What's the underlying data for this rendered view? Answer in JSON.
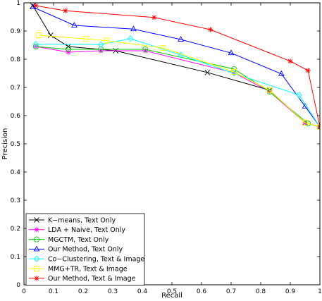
{
  "chart_data": {
    "type": "line",
    "xlabel": "Recall",
    "ylabel": "Precision",
    "xlim": [
      0,
      1
    ],
    "ylim": [
      0,
      1
    ],
    "xticks": [
      "0",
      "0.1",
      "0.2",
      "0.3",
      "0.4",
      "0.5",
      "0.6",
      "0.7",
      "0.8",
      "0.9",
      "1"
    ],
    "yticks": [
      "0",
      "0.1",
      "0.2",
      "0.3",
      "0.4",
      "0.5",
      "0.6",
      "0.7",
      "0.8",
      "0.9",
      "1"
    ],
    "grid": false,
    "legend_position": "bottom-left",
    "series": [
      {
        "name": "K−means, Text Only",
        "color": "#000000",
        "marker": "x",
        "points": [
          [
            0.03,
            0.99
          ],
          [
            0.09,
            0.885
          ],
          [
            0.15,
            0.845
          ],
          [
            0.31,
            0.83
          ],
          [
            0.62,
            0.753
          ],
          [
            0.83,
            0.69
          ],
          [
            0.95,
            0.575
          ],
          [
            1.0,
            0.56
          ]
        ]
      },
      {
        "name": "LDA + Naive, Text Only",
        "color": "#ff00ff",
        "marker": "star",
        "points": [
          [
            0.04,
            0.845
          ],
          [
            0.15,
            0.825
          ],
          [
            0.26,
            0.83
          ],
          [
            0.41,
            0.83
          ],
          [
            0.71,
            0.752
          ],
          [
            0.83,
            0.685
          ],
          [
            0.95,
            0.575
          ],
          [
            1.0,
            0.56
          ]
        ]
      },
      {
        "name": "MGCTM, Text Only",
        "color": "#00cc00",
        "marker": "circle",
        "points": [
          [
            0.04,
            0.845
          ],
          [
            0.15,
            0.835
          ],
          [
            0.26,
            0.835
          ],
          [
            0.41,
            0.835
          ],
          [
            0.71,
            0.765
          ],
          [
            0.83,
            0.685
          ],
          [
            0.96,
            0.572
          ],
          [
            1.0,
            0.56
          ]
        ]
      },
      {
        "name": "Our Method, Text Only",
        "color": "#0000ff",
        "marker": "triangle",
        "points": [
          [
            0.03,
            0.985
          ],
          [
            0.17,
            0.92
          ],
          [
            0.37,
            0.907
          ],
          [
            0.53,
            0.87
          ],
          [
            0.7,
            0.822
          ],
          [
            0.87,
            0.748
          ],
          [
            0.95,
            0.633
          ],
          [
            1.0,
            0.56
          ]
        ]
      },
      {
        "name": "Co−Clustering, Text & Image",
        "color": "#00ffff",
        "marker": "diamond",
        "points": [
          [
            0.04,
            0.853
          ],
          [
            0.26,
            0.852
          ],
          [
            0.36,
            0.873
          ],
          [
            0.53,
            0.815
          ],
          [
            0.71,
            0.75
          ],
          [
            0.93,
            0.673
          ],
          [
            1.0,
            0.56
          ]
        ]
      },
      {
        "name": "MMG+TR, Text & Image",
        "color": "#ffff00",
        "marker": "square",
        "points": [
          [
            0.05,
            0.885
          ],
          [
            0.21,
            0.872
          ],
          [
            0.28,
            0.866
          ],
          [
            0.47,
            0.84
          ],
          [
            0.71,
            0.755
          ],
          [
            0.83,
            0.69
          ],
          [
            0.95,
            0.575
          ],
          [
            1.0,
            0.56
          ]
        ]
      },
      {
        "name": "Our Method, Text & Image",
        "color": "#ff0000",
        "marker": "star",
        "points": [
          [
            0.04,
            0.99
          ],
          [
            0.14,
            0.972
          ],
          [
            0.44,
            0.948
          ],
          [
            0.63,
            0.905
          ],
          [
            0.9,
            0.793
          ],
          [
            0.96,
            0.76
          ],
          [
            1.0,
            0.56
          ]
        ]
      }
    ]
  }
}
